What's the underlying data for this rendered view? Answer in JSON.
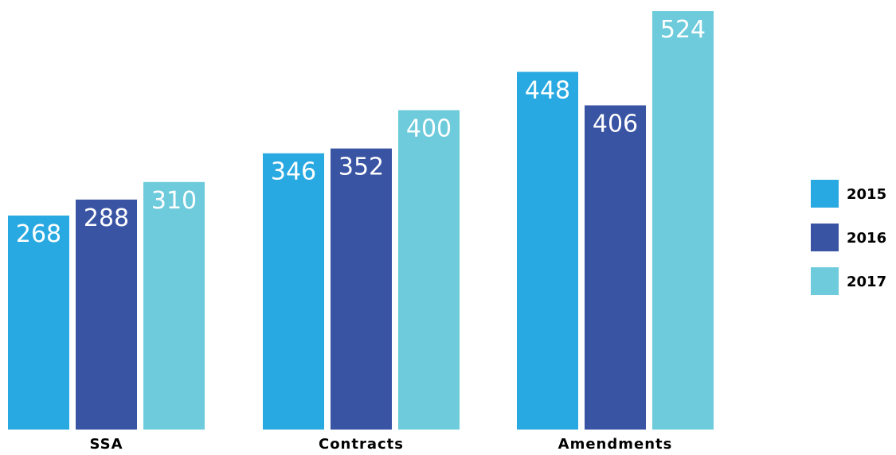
{
  "chart_data": {
    "type": "bar",
    "categories": [
      "SSA",
      "Contracts",
      "Amendments"
    ],
    "series": [
      {
        "name": "2015",
        "values": [
          268,
          346,
          448
        ],
        "color": "#29a9e1"
      },
      {
        "name": "2016",
        "values": [
          288,
          352,
          406
        ],
        "color": "#3a54a4"
      },
      {
        "name": "2017",
        "values": [
          310,
          400,
          524
        ],
        "color": "#6ecbdc"
      }
    ],
    "ylim": [
      0,
      524
    ],
    "grid": false,
    "legend": "right"
  }
}
